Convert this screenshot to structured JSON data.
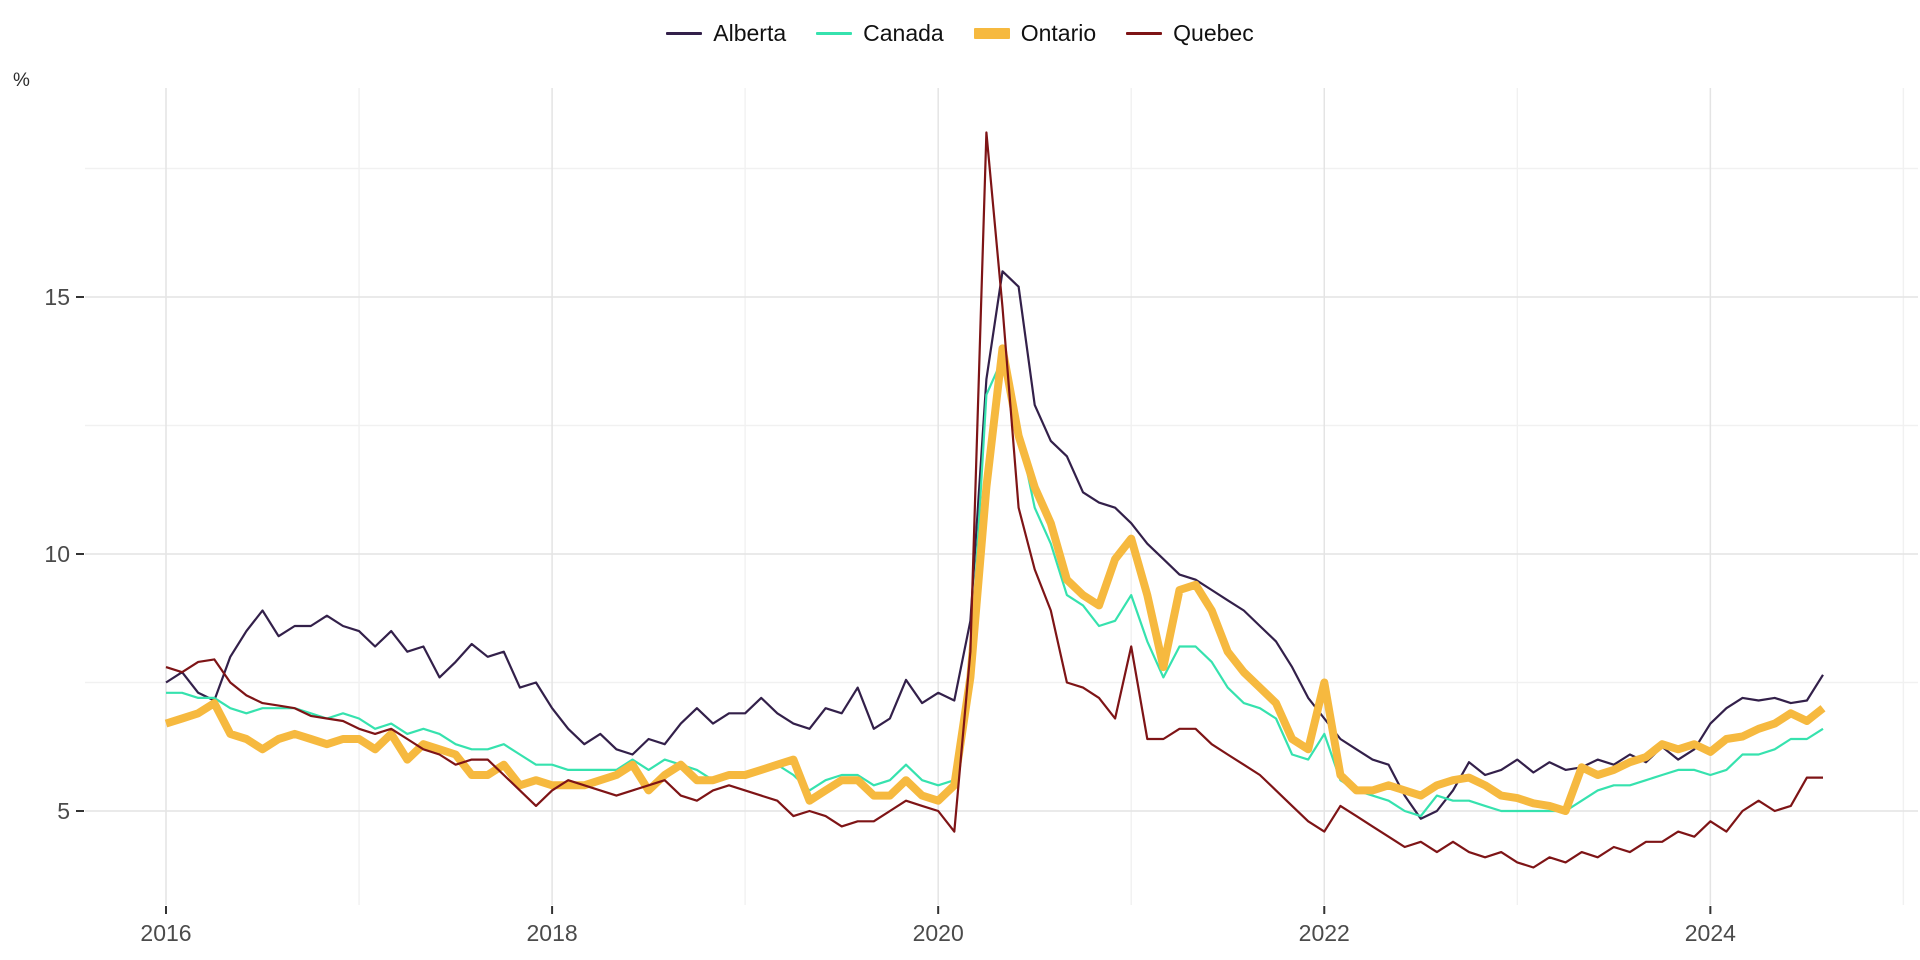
{
  "chart_data": {
    "type": "line",
    "title": "",
    "ylabel": "%",
    "frequency": "monthly",
    "x_start": "2016-01",
    "x_end": "2024-08",
    "x_axis": {
      "major_ticks": [
        {
          "label": "2016",
          "month": 0
        },
        {
          "label": "2018",
          "month": 24
        },
        {
          "label": "2020",
          "month": 48
        },
        {
          "label": "2022",
          "month": 72
        },
        {
          "label": "2024",
          "month": 96
        }
      ],
      "minor_tick_months": [
        12,
        36,
        60,
        84,
        108
      ]
    },
    "y_axis": {
      "unit_label": "%",
      "major_ticks": [
        5,
        10,
        15
      ],
      "minor_ticks": [
        7.5,
        12.5,
        17.5
      ],
      "range_shown": [
        3.2,
        19.0
      ]
    },
    "grid": true,
    "legend_position": "top-center",
    "colors": {
      "grid_major": "#e4e4e4",
      "grid_minor": "#f1f1f1",
      "axis_text": "#4b4b4b",
      "tick_mark": "#333333"
    },
    "series": [
      {
        "name": "Alberta",
        "color": "#33204a",
        "line_width": 2.2,
        "values": [
          7.5,
          7.7,
          7.3,
          7.15,
          8.0,
          8.5,
          8.9,
          8.4,
          8.6,
          8.6,
          8.8,
          8.6,
          8.5,
          8.2,
          8.5,
          8.1,
          8.2,
          7.6,
          7.9,
          8.25,
          8.0,
          8.1,
          7.4,
          7.5,
          7.0,
          6.6,
          6.3,
          6.5,
          6.2,
          6.1,
          6.4,
          6.3,
          6.7,
          7.0,
          6.7,
          6.9,
          6.9,
          7.2,
          6.9,
          6.7,
          6.6,
          7.0,
          6.9,
          7.4,
          6.6,
          6.8,
          7.55,
          7.1,
          7.3,
          7.15,
          8.7,
          13.4,
          15.5,
          15.2,
          12.9,
          12.2,
          11.9,
          11.2,
          11.0,
          10.9,
          10.6,
          10.2,
          9.9,
          9.6,
          9.5,
          9.3,
          9.1,
          8.9,
          8.6,
          8.3,
          7.8,
          7.2,
          6.8,
          6.4,
          6.2,
          6.0,
          5.9,
          5.3,
          4.85,
          5.0,
          5.4,
          5.95,
          5.7,
          5.8,
          6.0,
          5.75,
          5.95,
          5.8,
          5.85,
          6.0,
          5.9,
          6.1,
          5.95,
          6.25,
          6.0,
          6.2,
          6.7,
          7.0,
          7.2,
          7.15,
          7.2,
          7.1,
          7.15,
          7.65
        ]
      },
      {
        "name": "Canada",
        "color": "#36e2ae",
        "line_width": 2.2,
        "values": [
          7.3,
          7.3,
          7.2,
          7.2,
          7.0,
          6.9,
          7.0,
          7.0,
          7.0,
          6.9,
          6.8,
          6.9,
          6.8,
          6.6,
          6.7,
          6.5,
          6.6,
          6.5,
          6.3,
          6.2,
          6.2,
          6.3,
          6.1,
          5.9,
          5.9,
          5.8,
          5.8,
          5.8,
          5.8,
          6.0,
          5.8,
          6.0,
          5.9,
          5.8,
          5.6,
          5.7,
          5.7,
          5.8,
          5.9,
          5.7,
          5.4,
          5.6,
          5.7,
          5.7,
          5.5,
          5.6,
          5.9,
          5.6,
          5.5,
          5.6,
          7.8,
          13.1,
          13.8,
          12.4,
          10.9,
          10.2,
          9.2,
          9.0,
          8.6,
          8.7,
          9.2,
          8.3,
          7.6,
          8.2,
          8.2,
          7.9,
          7.4,
          7.1,
          7.0,
          6.8,
          6.1,
          6.0,
          6.5,
          5.6,
          5.4,
          5.3,
          5.2,
          5.0,
          4.9,
          5.3,
          5.2,
          5.2,
          5.1,
          5.0,
          5.0,
          5.0,
          5.0,
          5.0,
          5.2,
          5.4,
          5.5,
          5.5,
          5.6,
          5.7,
          5.8,
          5.8,
          5.7,
          5.8,
          6.1,
          6.1,
          6.2,
          6.4,
          6.4,
          6.6
        ]
      },
      {
        "name": "Ontario",
        "color": "#f6b93f",
        "line_width": 8,
        "values": [
          6.7,
          6.8,
          6.9,
          7.1,
          6.5,
          6.4,
          6.2,
          6.4,
          6.5,
          6.4,
          6.3,
          6.4,
          6.4,
          6.2,
          6.5,
          6.0,
          6.3,
          6.2,
          6.1,
          5.7,
          5.7,
          5.9,
          5.5,
          5.6,
          5.5,
          5.5,
          5.5,
          5.6,
          5.7,
          5.9,
          5.4,
          5.7,
          5.9,
          5.6,
          5.6,
          5.7,
          5.7,
          5.8,
          5.9,
          6.0,
          5.2,
          5.4,
          5.6,
          5.6,
          5.3,
          5.3,
          5.6,
          5.3,
          5.2,
          5.5,
          7.6,
          11.3,
          14.0,
          12.3,
          11.3,
          10.6,
          9.5,
          9.2,
          9.0,
          9.9,
          10.3,
          9.2,
          7.8,
          9.3,
          9.4,
          8.9,
          8.1,
          7.7,
          7.4,
          7.1,
          6.4,
          6.2,
          7.5,
          5.7,
          5.4,
          5.4,
          5.5,
          5.4,
          5.3,
          5.5,
          5.6,
          5.65,
          5.5,
          5.3,
          5.25,
          5.15,
          5.1,
          5.0,
          5.85,
          5.7,
          5.8,
          5.95,
          6.05,
          6.3,
          6.2,
          6.3,
          6.15,
          6.4,
          6.45,
          6.6,
          6.7,
          6.9,
          6.75,
          7.0
        ]
      },
      {
        "name": "Quebec",
        "color": "#7e1416",
        "line_width": 2.2,
        "values": [
          7.8,
          7.7,
          7.9,
          7.95,
          7.5,
          7.25,
          7.1,
          7.05,
          7.0,
          6.85,
          6.8,
          6.75,
          6.6,
          6.5,
          6.6,
          6.4,
          6.2,
          6.1,
          5.9,
          6.0,
          6.0,
          5.7,
          5.4,
          5.1,
          5.4,
          5.6,
          5.5,
          5.4,
          5.3,
          5.4,
          5.5,
          5.6,
          5.3,
          5.2,
          5.4,
          5.5,
          5.4,
          5.3,
          5.2,
          4.9,
          5.0,
          4.9,
          4.7,
          4.8,
          4.8,
          5.0,
          5.2,
          5.1,
          5.0,
          4.6,
          8.1,
          18.2,
          14.8,
          10.9,
          9.7,
          8.9,
          7.5,
          7.4,
          7.2,
          6.8,
          8.2,
          6.4,
          6.4,
          6.6,
          6.6,
          6.3,
          6.1,
          5.9,
          5.7,
          5.4,
          5.1,
          4.8,
          4.6,
          5.1,
          4.9,
          4.7,
          4.5,
          4.3,
          4.4,
          4.2,
          4.4,
          4.2,
          4.1,
          4.2,
          4.0,
          3.9,
          4.1,
          4.0,
          4.2,
          4.1,
          4.3,
          4.2,
          4.4,
          4.4,
          4.6,
          4.5,
          4.8,
          4.6,
          5.0,
          5.2,
          5.0,
          5.1,
          5.65,
          5.65
        ]
      }
    ]
  }
}
